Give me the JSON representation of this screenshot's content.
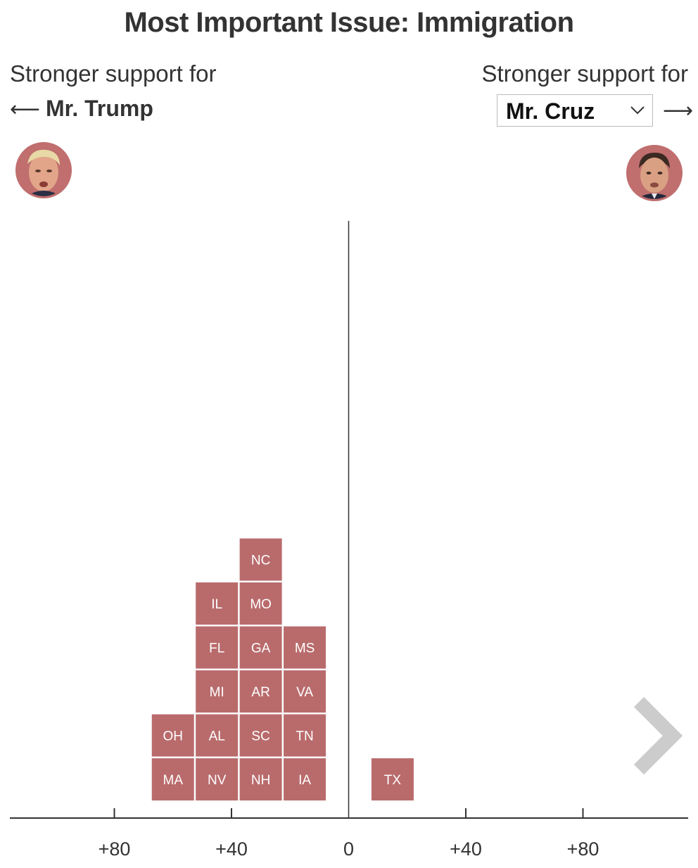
{
  "header": {
    "title": "Most Important Issue: Immigration",
    "left_caption": "Stronger support for",
    "right_caption": "Stronger support for",
    "left_candidate": "Mr. Trump",
    "left_arrow": "⟵",
    "right_arrow": "⟶",
    "right_candidate_selected": "Mr. Cruz"
  },
  "icons": {
    "dropdown": "chevron-down-icon",
    "next": "chevron-right-icon",
    "left_avatar": "trump-portrait",
    "right_avatar": "cruz-portrait"
  },
  "colors": {
    "tile": "#b96b6c",
    "axis": "#333333",
    "next_arrow": "#cccccc"
  },
  "chart_data": {
    "type": "dot-histogram",
    "title": "Most Important Issue: Immigration",
    "x_axis": {
      "ticks": [
        {
          "value": -80,
          "label": "+80"
        },
        {
          "value": -40,
          "label": "+40"
        },
        {
          "value": 0,
          "label": "0"
        },
        {
          "value": 40,
          "label": "+40"
        },
        {
          "value": 80,
          "label": "+80"
        }
      ],
      "range": [
        -115,
        115
      ]
    },
    "bins": [
      {
        "center": -60,
        "states": [
          "MA",
          "OH"
        ]
      },
      {
        "center": -45,
        "states": [
          "NV",
          "AL",
          "MI",
          "FL",
          "IL"
        ]
      },
      {
        "center": -30,
        "states": [
          "NH",
          "SC",
          "AR",
          "GA",
          "MO",
          "NC"
        ]
      },
      {
        "center": -15,
        "states": [
          "IA",
          "TN",
          "VA",
          "MS"
        ]
      },
      {
        "center": 15,
        "states": [
          "TX"
        ]
      }
    ]
  }
}
